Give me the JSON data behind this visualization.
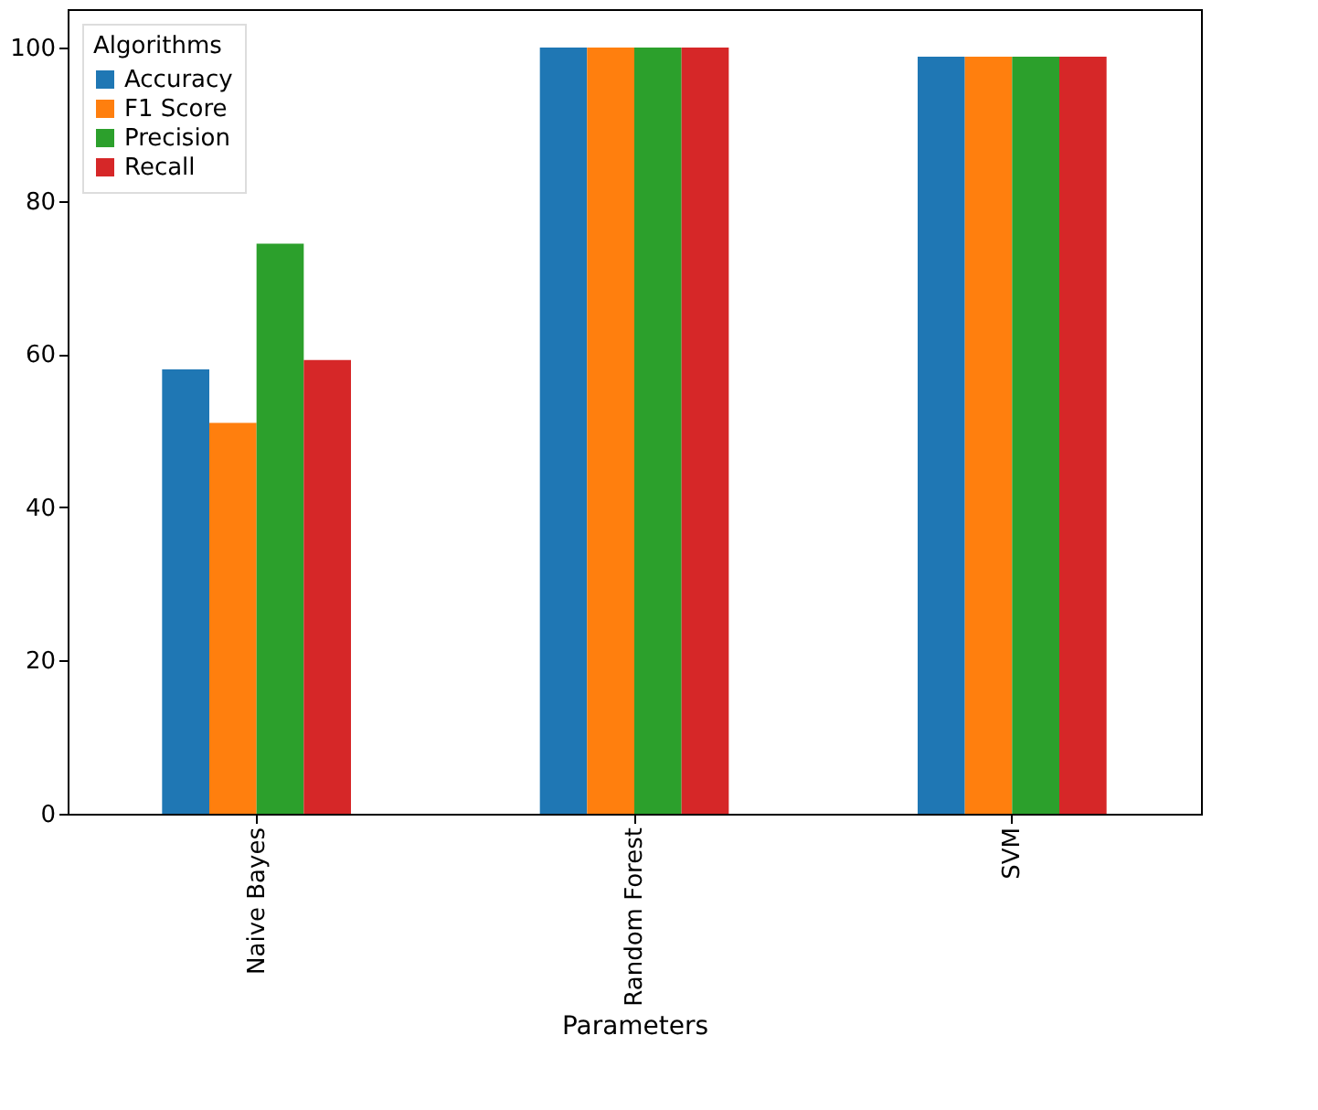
{
  "chart_data": {
    "type": "bar",
    "xlabel": "Parameters",
    "legend_title": "Algorithms",
    "legend": "top left",
    "grid": false,
    "categories": [
      "Naive Bayes",
      "Random Forest",
      "SVM"
    ],
    "series": [
      {
        "name": "Accuracy",
        "color": "#1f77b4",
        "values": [
          58.0,
          100,
          98.8
        ]
      },
      {
        "name": "F1 Score",
        "color": "#ff7f0e",
        "values": [
          51.0,
          100,
          98.8
        ]
      },
      {
        "name": "Precision",
        "color": "#2ca02c",
        "values": [
          74.4,
          100,
          98.8
        ]
      },
      {
        "name": "Recall",
        "color": "#d62728",
        "values": [
          59.2,
          100,
          98.8
        ]
      }
    ],
    "ylim": [
      0,
      105
    ],
    "yticks": [
      0,
      20,
      40,
      60,
      80,
      100
    ]
  }
}
